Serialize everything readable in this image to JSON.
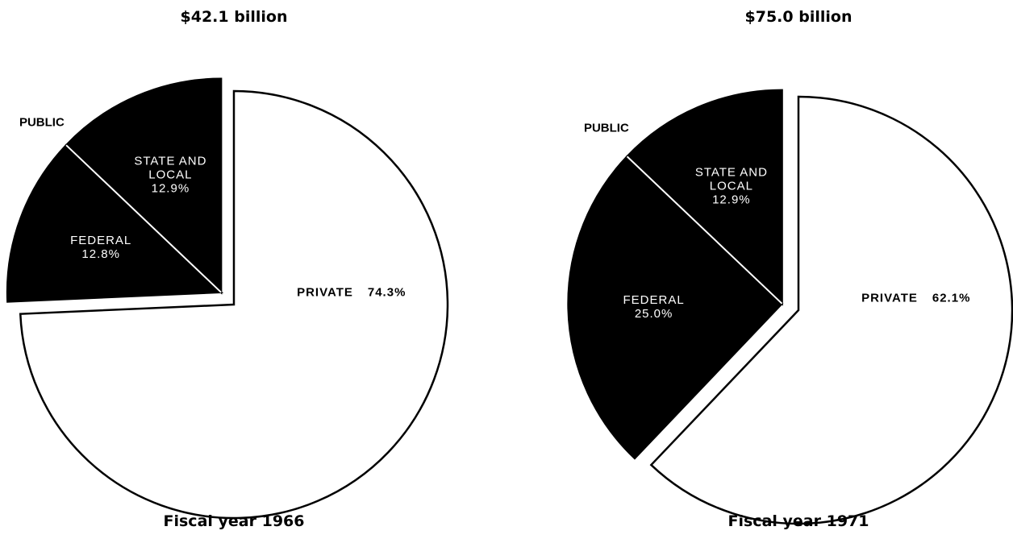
{
  "chart_data": [
    {
      "type": "pie",
      "title": "$42.1 billion",
      "caption": "Fiscal year 1966",
      "annotation": "PUBLIC",
      "categories": [
        "STATE AND LOCAL",
        "FEDERAL",
        "PRIVATE"
      ],
      "values": [
        12.9,
        12.8,
        74.3
      ],
      "value_labels": [
        "12.9%",
        "12.8%",
        "74.3%"
      ],
      "colors": [
        "#000000",
        "#000000",
        "#ffffff"
      ],
      "exploded": [
        true,
        true,
        false
      ]
    },
    {
      "type": "pie",
      "title": "$75.0 billion",
      "caption": "Fiscal year 1971",
      "annotation": "PUBLIC",
      "categories": [
        "STATE AND LOCAL",
        "FEDERAL",
        "PRIVATE"
      ],
      "values": [
        12.9,
        25.0,
        62.1
      ],
      "value_labels": [
        "12.9%",
        "25.0%",
        "62.1%"
      ],
      "colors": [
        "#000000",
        "#000000",
        "#ffffff"
      ],
      "exploded": [
        true,
        true,
        false
      ]
    }
  ]
}
